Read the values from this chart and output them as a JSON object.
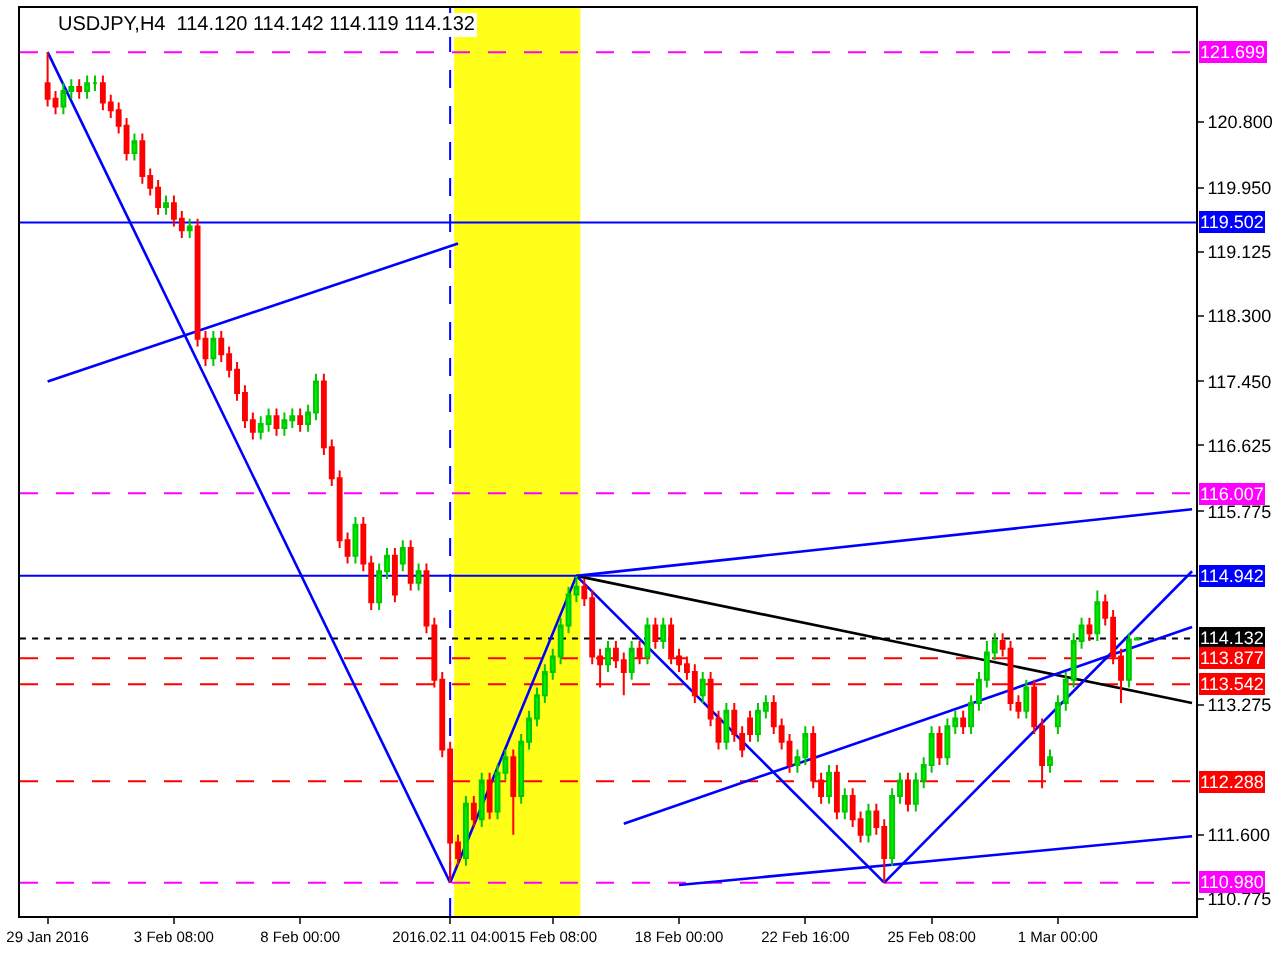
{
  "chart_data": {
    "type": "candlestick",
    "title": "USDJPY,H4  114.120 114.142 114.119 114.132",
    "categories": [
      "29 Jan 2016",
      null,
      null,
      null,
      null,
      null,
      null,
      null,
      null,
      null,
      null,
      null,
      null,
      null,
      null,
      null,
      "3 Feb 08:00",
      null,
      null,
      null,
      null,
      null,
      null,
      null,
      null,
      null,
      null,
      null,
      null,
      null,
      null,
      null,
      "8 Feb 00:00",
      null,
      null,
      null,
      null,
      null,
      null,
      null,
      null,
      null,
      null,
      null,
      null,
      null,
      null,
      null,
      null,
      null,
      null,
      "2016.02.11 04:00",
      null,
      null,
      null,
      null,
      null,
      null,
      null,
      null,
      null,
      null,
      null,
      null,
      "15 Feb 08:00",
      null,
      null,
      null,
      null,
      null,
      null,
      null,
      null,
      null,
      null,
      null,
      null,
      null,
      null,
      null,
      "18 Feb 00:00",
      null,
      null,
      null,
      null,
      null,
      null,
      null,
      null,
      null,
      null,
      null,
      null,
      null,
      null,
      null,
      "22 Feb 16:00",
      null,
      null,
      null,
      null,
      null,
      null,
      null,
      null,
      null,
      null,
      null,
      null,
      null,
      null,
      null,
      "25 Feb 08:00",
      null,
      null,
      null,
      null,
      null,
      null,
      null,
      null,
      null,
      null,
      null,
      null,
      null,
      null,
      null,
      "1 Mar 00:00",
      null,
      null,
      null,
      null,
      null,
      null,
      null,
      null,
      null,
      null,
      null,
      null,
      null,
      null,
      null,
      null,
      null
    ],
    "ylim": [
      110.55,
      122.27
    ],
    "yticks": [
      {
        "value": 120.8,
        "label": "120.800"
      },
      {
        "value": 119.95,
        "label": "119.950"
      },
      119.125,
      {
        "value": 118.3,
        "label": "118.300"
      },
      {
        "value": 117.45,
        "label": "117.450"
      },
      116.625,
      115.775,
      113.275,
      {
        "value": 111.6,
        "label": "111.600"
      },
      110.775
    ],
    "ohlc": [
      [
        121.3,
        121.7,
        121.0,
        121.1
      ],
      [
        121.1,
        121.2,
        120.9,
        121.0
      ],
      [
        121.0,
        121.3,
        120.9,
        121.2
      ],
      [
        121.2,
        121.35,
        121.1,
        121.25
      ],
      [
        121.25,
        121.35,
        121.1,
        121.2
      ],
      [
        121.2,
        121.4,
        121.1,
        121.3
      ],
      [
        121.3,
        121.4,
        121.2,
        121.3
      ],
      [
        121.3,
        121.4,
        120.95,
        121.05
      ],
      [
        121.05,
        121.15,
        120.85,
        120.95
      ],
      [
        120.95,
        121.05,
        120.65,
        120.75
      ],
      [
        120.75,
        120.85,
        120.3,
        120.4
      ],
      [
        120.4,
        120.65,
        120.3,
        120.55
      ],
      [
        120.55,
        120.65,
        120.0,
        120.1
      ],
      [
        120.1,
        120.2,
        119.85,
        119.95
      ],
      [
        119.95,
        120.05,
        119.6,
        119.7
      ],
      [
        119.7,
        119.85,
        119.6,
        119.75
      ],
      [
        119.75,
        119.85,
        119.45,
        119.55
      ],
      [
        119.55,
        119.65,
        119.3,
        119.4
      ],
      [
        119.4,
        119.55,
        119.3,
        119.45
      ],
      [
        119.45,
        119.55,
        117.9,
        118.0
      ],
      [
        118.0,
        118.1,
        117.65,
        117.75
      ],
      [
        117.75,
        118.1,
        117.65,
        118.0
      ],
      [
        118.0,
        118.1,
        117.7,
        117.8
      ],
      [
        117.8,
        117.9,
        117.5,
        117.6
      ],
      [
        117.6,
        117.7,
        117.2,
        117.3
      ],
      [
        117.3,
        117.4,
        116.85,
        116.95
      ],
      [
        116.95,
        117.05,
        116.7,
        116.8
      ],
      [
        116.8,
        117.0,
        116.7,
        116.9
      ],
      [
        116.9,
        117.1,
        116.8,
        117.0
      ],
      [
        117.0,
        117.1,
        116.75,
        116.85
      ],
      [
        116.85,
        117.05,
        116.75,
        116.95
      ],
      [
        116.95,
        117.1,
        116.85,
        117.0
      ],
      [
        117.0,
        117.1,
        116.8,
        116.9
      ],
      [
        116.9,
        117.15,
        116.8,
        117.05
      ],
      [
        117.05,
        117.55,
        116.95,
        117.45
      ],
      [
        117.45,
        117.55,
        116.5,
        116.6
      ],
      [
        116.6,
        116.7,
        116.1,
        116.2
      ],
      [
        116.2,
        116.3,
        115.3,
        115.4
      ],
      [
        115.4,
        115.5,
        115.1,
        115.2
      ],
      [
        115.2,
        115.7,
        115.1,
        115.6
      ],
      [
        115.6,
        115.7,
        115.0,
        115.1
      ],
      [
        115.1,
        115.2,
        114.5,
        114.6
      ],
      [
        114.6,
        115.1,
        114.5,
        115.0
      ],
      [
        115.0,
        115.3,
        114.9,
        115.2
      ],
      [
        115.2,
        115.3,
        114.6,
        114.7
      ],
      [
        115.1,
        115.4,
        115.0,
        115.3
      ],
      [
        115.3,
        115.4,
        114.75,
        114.85
      ],
      [
        114.85,
        115.1,
        114.75,
        115.0
      ],
      [
        115.0,
        115.1,
        114.2,
        114.3
      ],
      [
        114.3,
        114.4,
        113.5,
        113.6
      ],
      [
        113.6,
        113.7,
        112.6,
        112.7
      ],
      [
        112.7,
        112.8,
        110.98,
        111.5
      ],
      [
        111.5,
        111.6,
        111.2,
        111.3
      ],
      [
        111.3,
        112.1,
        111.2,
        112.0
      ],
      [
        112.0,
        112.1,
        111.7,
        111.8
      ],
      [
        111.8,
        112.4,
        111.7,
        112.3
      ],
      [
        112.3,
        112.4,
        111.8,
        111.9
      ],
      [
        111.9,
        112.5,
        111.8,
        112.4
      ],
      [
        112.4,
        112.7,
        112.3,
        112.6
      ],
      [
        112.6,
        112.7,
        111.6,
        112.1
      ],
      [
        112.1,
        112.9,
        112.0,
        112.8
      ],
      [
        112.8,
        113.2,
        112.7,
        113.1
      ],
      [
        113.1,
        113.5,
        113.0,
        113.4
      ],
      [
        113.4,
        113.8,
        113.3,
        113.7
      ],
      [
        113.7,
        114.0,
        113.6,
        113.9
      ],
      [
        113.9,
        114.4,
        113.8,
        114.3
      ],
      [
        114.3,
        114.8,
        114.2,
        114.7
      ],
      [
        114.7,
        114.94,
        114.6,
        114.8
      ],
      [
        114.8,
        114.9,
        114.55,
        114.65
      ],
      [
        114.65,
        114.75,
        113.8,
        113.9
      ],
      [
        113.9,
        114.0,
        113.5,
        113.8
      ],
      [
        113.8,
        114.1,
        113.7,
        114.0
      ],
      [
        114.0,
        114.1,
        113.75,
        113.85
      ],
      [
        113.85,
        113.95,
        113.4,
        113.7
      ],
      [
        113.7,
        114.1,
        113.6,
        114.0
      ],
      [
        114.0,
        114.1,
        113.8,
        113.9
      ],
      [
        113.9,
        114.4,
        113.8,
        114.3
      ],
      [
        114.3,
        114.4,
        114.0,
        114.1
      ],
      [
        114.1,
        114.4,
        114.0,
        114.3
      ],
      [
        114.3,
        114.4,
        113.8,
        113.9
      ],
      [
        113.9,
        114.0,
        113.7,
        113.8
      ],
      [
        113.8,
        113.9,
        113.6,
        113.7
      ],
      [
        113.7,
        113.8,
        113.3,
        113.4
      ],
      [
        113.4,
        113.7,
        113.3,
        113.6
      ],
      [
        113.6,
        113.7,
        113.0,
        113.1
      ],
      [
        113.1,
        113.2,
        112.7,
        112.8
      ],
      [
        112.8,
        113.3,
        112.7,
        113.2
      ],
      [
        113.2,
        113.3,
        112.8,
        112.9
      ],
      [
        112.9,
        113.0,
        112.6,
        112.7
      ],
      [
        113.1,
        113.2,
        112.8,
        112.9
      ],
      [
        112.9,
        113.3,
        112.8,
        113.2
      ],
      [
        113.2,
        113.4,
        113.1,
        113.3
      ],
      [
        113.3,
        113.4,
        112.9,
        113.0
      ],
      [
        113.0,
        113.1,
        112.7,
        112.8
      ],
      [
        112.8,
        112.9,
        112.4,
        112.5
      ],
      [
        112.5,
        112.7,
        112.4,
        112.6
      ],
      [
        112.6,
        113.0,
        112.5,
        112.9
      ],
      [
        112.9,
        113.0,
        112.2,
        112.3
      ],
      [
        112.3,
        112.4,
        112.0,
        112.1
      ],
      [
        112.1,
        112.5,
        112.0,
        112.4
      ],
      [
        112.4,
        112.5,
        111.8,
        111.9
      ],
      [
        111.9,
        112.2,
        111.8,
        112.1
      ],
      [
        112.1,
        112.2,
        111.7,
        111.8
      ],
      [
        111.8,
        111.9,
        111.5,
        111.6
      ],
      [
        111.6,
        112.0,
        111.5,
        111.9
      ],
      [
        111.9,
        112.0,
        111.6,
        111.7
      ],
      [
        111.7,
        111.8,
        110.98,
        111.3
      ],
      [
        111.3,
        112.2,
        111.2,
        112.1
      ],
      [
        112.1,
        112.4,
        112.0,
        112.3
      ],
      [
        112.3,
        112.4,
        111.9,
        112.0
      ],
      [
        112.0,
        112.4,
        111.9,
        112.3
      ],
      [
        112.3,
        112.6,
        112.2,
        112.5
      ],
      [
        112.5,
        113.0,
        112.4,
        112.9
      ],
      [
        112.9,
        113.0,
        112.5,
        112.6
      ],
      [
        112.6,
        113.1,
        112.5,
        113.0
      ],
      [
        113.0,
        113.2,
        112.9,
        113.1
      ],
      [
        113.1,
        113.2,
        112.9,
        113.0
      ],
      [
        113.0,
        113.4,
        112.9,
        113.3
      ],
      [
        113.3,
        113.7,
        113.2,
        113.6
      ],
      [
        113.6,
        114.1,
        113.5,
        113.95
      ],
      [
        113.95,
        114.2,
        113.85,
        114.1
      ],
      [
        114.1,
        114.2,
        113.9,
        114.0
      ],
      [
        114.0,
        114.1,
        113.2,
        113.3
      ],
      [
        113.3,
        113.4,
        113.1,
        113.2
      ],
      [
        113.2,
        113.6,
        113.1,
        113.5
      ],
      [
        113.5,
        113.6,
        112.9,
        113.0
      ],
      [
        113.0,
        113.1,
        112.2,
        112.5
      ],
      [
        112.5,
        112.7,
        112.4,
        112.6
      ],
      [
        113.0,
        113.4,
        112.9,
        113.3
      ],
      [
        113.3,
        113.7,
        113.2,
        113.6
      ],
      [
        113.6,
        114.2,
        113.5,
        114.1
      ],
      [
        114.1,
        114.4,
        114.0,
        114.3
      ],
      [
        114.3,
        114.4,
        114.1,
        114.2
      ],
      [
        114.2,
        114.75,
        114.1,
        114.6
      ],
      [
        114.6,
        114.7,
        114.3,
        114.4
      ],
      [
        114.4,
        114.5,
        113.8,
        113.9
      ],
      [
        113.9,
        114.0,
        113.3,
        113.6
      ],
      [
        113.6,
        114.2,
        113.5,
        114.12
      ],
      [
        114.12,
        114.142,
        114.119,
        114.132
      ],
      null,
      null,
      null,
      null,
      null,
      null,
      null
    ],
    "series": [
      {
        "type": "line",
        "color": "#0000ff",
        "values": [
          121.7,
          null,
          null,
          null,
          null,
          null,
          null,
          null,
          null,
          null,
          null,
          null,
          null,
          null,
          null,
          null,
          null,
          null,
          null,
          null,
          null,
          null,
          null,
          null,
          null,
          null,
          null,
          null,
          null,
          null,
          null,
          null,
          null,
          null,
          null,
          null,
          null,
          null,
          null,
          null,
          null,
          null,
          null,
          null,
          null,
          null,
          null,
          null,
          null,
          null,
          null,
          110.98,
          null,
          null,
          null,
          null,
          null,
          null,
          null,
          null,
          null,
          null,
          null,
          null,
          null,
          null,
          null,
          null,
          null,
          null,
          null,
          null,
          null,
          null,
          null,
          null,
          null,
          null,
          null,
          null,
          null,
          null,
          null,
          null,
          null,
          null,
          null,
          null,
          null,
          null,
          null,
          null,
          null,
          null,
          null,
          null,
          null,
          null,
          null,
          null,
          null,
          null,
          null,
          null,
          null,
          null,
          null,
          null,
          null,
          null,
          null,
          null,
          null,
          null,
          null,
          null,
          null,
          null,
          null,
          null,
          null,
          null,
          null,
          null,
          null,
          null,
          null,
          null,
          null,
          null,
          null,
          null,
          null,
          null,
          null,
          null,
          null,
          null,
          null,
          null,
          null,
          null,
          null,
          null,
          null,
          null
        ]
      },
      {
        "type": "line",
        "color": "#0000ff",
        "values": [
          117.45,
          null,
          null,
          null,
          null,
          null,
          null,
          null,
          null,
          null,
          null,
          null,
          null,
          null,
          null,
          null,
          null,
          null,
          null,
          null,
          null,
          null,
          null,
          null,
          null,
          null,
          null,
          null,
          null,
          null,
          null,
          null,
          null,
          null,
          null,
          null,
          null,
          null,
          null,
          null,
          null,
          null,
          null,
          null,
          null,
          null,
          null,
          null,
          null,
          null,
          null,
          null,
          119.23,
          null,
          null,
          null,
          null,
          null,
          null,
          null,
          null,
          null,
          null,
          null,
          null,
          null,
          null,
          null,
          null,
          null,
          null,
          null,
          null,
          null,
          null,
          null,
          null,
          null,
          null,
          null,
          null,
          null,
          null,
          null,
          null,
          null,
          null,
          null,
          null,
          null,
          null,
          null,
          null,
          null,
          null,
          null,
          null,
          null,
          null,
          null,
          null,
          null,
          null,
          null,
          null,
          null,
          null,
          null,
          null,
          null,
          null,
          null,
          null,
          null,
          null,
          null,
          null,
          null,
          null,
          null,
          null,
          null,
          null,
          null,
          null,
          null,
          null,
          null,
          null,
          null,
          null,
          null,
          null,
          null,
          null,
          null,
          null,
          null,
          null,
          null,
          null,
          null,
          null,
          null,
          null,
          null
        ]
      },
      {
        "type": "line",
        "color": "#0000ff",
        "values": [
          null,
          null,
          null,
          null,
          null,
          null,
          null,
          null,
          null,
          null,
          null,
          null,
          null,
          null,
          null,
          null,
          null,
          null,
          null,
          null,
          null,
          null,
          null,
          null,
          null,
          null,
          null,
          null,
          null,
          null,
          null,
          null,
          null,
          null,
          null,
          null,
          null,
          null,
          null,
          null,
          null,
          null,
          null,
          null,
          null,
          null,
          null,
          null,
          null,
          null,
          null,
          110.98,
          null,
          null,
          null,
          null,
          null,
          null,
          null,
          null,
          null,
          null,
          null,
          null,
          null,
          null,
          null,
          114.94,
          null,
          null,
          null,
          null,
          null,
          null,
          null,
          null,
          null,
          null,
          null,
          null,
          null,
          null,
          null,
          null,
          null,
          null,
          null,
          null,
          null,
          null,
          null,
          null,
          null,
          null,
          null,
          null,
          null,
          null,
          null,
          null,
          null,
          null,
          null,
          null,
          null,
          null,
          null,
          null,
          null,
          null,
          null,
          null,
          null,
          null,
          null,
          null,
          null,
          null,
          null,
          null,
          null,
          null,
          null,
          null,
          null,
          null,
          null,
          null,
          null,
          null,
          null,
          null,
          null,
          null,
          null,
          null,
          null,
          null,
          null,
          null,
          null,
          null,
          null,
          null,
          null,
          null
        ]
      },
      {
        "type": "line",
        "color": "#0000ff",
        "values": [
          null,
          null,
          null,
          null,
          null,
          null,
          null,
          null,
          null,
          null,
          null,
          null,
          null,
          null,
          null,
          null,
          null,
          null,
          null,
          null,
          null,
          null,
          null,
          null,
          null,
          null,
          null,
          null,
          null,
          null,
          null,
          null,
          null,
          null,
          null,
          null,
          null,
          null,
          null,
          null,
          null,
          null,
          null,
          null,
          null,
          null,
          null,
          null,
          null,
          null,
          null,
          null,
          null,
          null,
          null,
          null,
          null,
          null,
          null,
          null,
          null,
          null,
          null,
          null,
          null,
          null,
          null,
          114.94,
          null,
          null,
          null,
          null,
          null,
          null,
          null,
          null,
          null,
          null,
          null,
          null,
          null,
          null,
          null,
          null,
          null,
          null,
          null,
          null,
          null,
          null,
          null,
          null,
          null,
          null,
          null,
          null,
          null,
          null,
          null,
          null,
          null,
          null,
          null,
          null,
          null,
          null,
          110.98,
          null,
          null,
          null,
          null,
          null,
          null,
          null,
          null,
          null,
          null,
          null,
          null,
          null,
          null,
          null,
          null,
          null,
          null,
          null,
          null,
          null,
          null,
          null,
          null,
          null,
          null,
          null,
          null,
          null,
          null,
          null,
          null,
          null,
          null,
          null,
          null,
          null,
          null,
          null
        ]
      },
      {
        "type": "line",
        "color": "#000000",
        "values": [
          null,
          null,
          null,
          null,
          null,
          null,
          null,
          null,
          null,
          null,
          null,
          null,
          null,
          null,
          null,
          null,
          null,
          null,
          null,
          null,
          null,
          null,
          null,
          null,
          null,
          null,
          null,
          null,
          null,
          null,
          null,
          null,
          null,
          null,
          null,
          null,
          null,
          null,
          null,
          null,
          null,
          null,
          null,
          null,
          null,
          null,
          null,
          null,
          null,
          null,
          null,
          null,
          null,
          null,
          null,
          null,
          null,
          null,
          null,
          null,
          null,
          null,
          null,
          null,
          null,
          null,
          null,
          114.94,
          null,
          null,
          null,
          null,
          null,
          null,
          null,
          null,
          null,
          null,
          null,
          null,
          null,
          null,
          null,
          null,
          null,
          null,
          null,
          null,
          null,
          null,
          null,
          null,
          null,
          null,
          null,
          null,
          null,
          null,
          null,
          null,
          null,
          null,
          null,
          null,
          null,
          null,
          null,
          null,
          null,
          null,
          null,
          null,
          null,
          null,
          null,
          null,
          null,
          null,
          null,
          null,
          null,
          null,
          null,
          null,
          null,
          null,
          null,
          null,
          null,
          null,
          null,
          null,
          null,
          null,
          null,
          null,
          null,
          null,
          null,
          null,
          null,
          null,
          null,
          null,
          null,
          113.3
        ]
      },
      {
        "type": "line",
        "color": "#0000ff",
        "values": [
          null,
          null,
          null,
          null,
          null,
          null,
          null,
          null,
          null,
          null,
          null,
          null,
          null,
          null,
          null,
          null,
          null,
          null,
          null,
          null,
          null,
          null,
          null,
          null,
          null,
          null,
          null,
          null,
          null,
          null,
          null,
          null,
          null,
          null,
          null,
          null,
          null,
          null,
          null,
          null,
          null,
          null,
          null,
          null,
          null,
          null,
          null,
          null,
          null,
          null,
          null,
          null,
          null,
          null,
          null,
          null,
          null,
          null,
          null,
          null,
          null,
          null,
          null,
          null,
          null,
          null,
          null,
          114.94,
          null,
          null,
          null,
          null,
          null,
          null,
          null,
          null,
          null,
          null,
          null,
          null,
          null,
          null,
          null,
          null,
          null,
          null,
          null,
          null,
          null,
          null,
          null,
          null,
          null,
          null,
          null,
          null,
          null,
          null,
          null,
          null,
          null,
          null,
          null,
          null,
          null,
          null,
          null,
          null,
          null,
          null,
          null,
          null,
          null,
          null,
          null,
          null,
          null,
          null,
          null,
          null,
          null,
          null,
          null,
          null,
          null,
          null,
          null,
          null,
          null,
          null,
          null,
          null,
          null,
          null,
          null,
          null,
          null,
          null,
          null,
          null,
          null,
          null,
          null,
          null,
          null,
          115.8
        ]
      },
      {
        "type": "line",
        "color": "#0000ff",
        "values": [
          null,
          null,
          null,
          null,
          null,
          null,
          null,
          null,
          null,
          null,
          null,
          null,
          null,
          null,
          null,
          null,
          null,
          null,
          null,
          null,
          null,
          null,
          null,
          null,
          null,
          null,
          null,
          null,
          null,
          null,
          null,
          null,
          null,
          null,
          null,
          null,
          null,
          null,
          null,
          null,
          null,
          null,
          null,
          null,
          null,
          null,
          null,
          null,
          null,
          null,
          null,
          null,
          null,
          null,
          null,
          null,
          null,
          null,
          null,
          null,
          null,
          null,
          null,
          null,
          null,
          null,
          null,
          null,
          null,
          null,
          null,
          null,
          null,
          null,
          null,
          null,
          null,
          null,
          null,
          null,
          null,
          null,
          null,
          null,
          null,
          null,
          null,
          null,
          null,
          null,
          null,
          null,
          null,
          null,
          null,
          null,
          null,
          null,
          null,
          null,
          null,
          null,
          null,
          null,
          null,
          null,
          110.98,
          null,
          null,
          null,
          null,
          null,
          null,
          null,
          null,
          null,
          null,
          null,
          null,
          null,
          null,
          null,
          null,
          null,
          null,
          null,
          null,
          null,
          null,
          null,
          null,
          null,
          null,
          null,
          null,
          null,
          null,
          null,
          null,
          null,
          null,
          null,
          null,
          null,
          null,
          115.0
        ]
      },
      {
        "type": "line",
        "color": "#0000ff",
        "values": [
          null,
          null,
          null,
          null,
          null,
          null,
          null,
          null,
          null,
          null,
          null,
          null,
          null,
          null,
          null,
          null,
          null,
          null,
          null,
          null,
          null,
          null,
          null,
          null,
          null,
          null,
          null,
          null,
          null,
          null,
          null,
          null,
          null,
          null,
          null,
          null,
          null,
          null,
          null,
          null,
          null,
          null,
          null,
          null,
          null,
          null,
          null,
          null,
          null,
          null,
          null,
          null,
          null,
          null,
          null,
          null,
          null,
          null,
          null,
          null,
          null,
          null,
          null,
          null,
          null,
          null,
          null,
          null,
          null,
          null,
          null,
          null,
          null,
          null,
          null,
          null,
          null,
          null,
          null,
          null,
          110.95,
          null,
          null,
          null,
          null,
          null,
          null,
          null,
          null,
          null,
          null,
          null,
          null,
          null,
          null,
          null,
          null,
          null,
          null,
          null,
          null,
          null,
          null,
          null,
          null,
          null,
          null,
          null,
          null,
          null,
          null,
          null,
          null,
          null,
          null,
          null,
          null,
          null,
          null,
          null,
          null,
          null,
          null,
          null,
          null,
          null,
          null,
          null,
          null,
          null,
          null,
          null,
          null,
          null,
          null,
          null,
          null,
          null,
          null,
          null,
          null,
          null,
          null,
          null,
          null,
          111.58
        ]
      },
      {
        "type": "line",
        "color": "#0000ff",
        "values": [
          null,
          null,
          null,
          null,
          null,
          null,
          null,
          null,
          null,
          null,
          null,
          null,
          null,
          null,
          null,
          null,
          null,
          null,
          null,
          null,
          null,
          null,
          null,
          null,
          null,
          null,
          null,
          null,
          null,
          null,
          null,
          null,
          null,
          null,
          null,
          null,
          null,
          null,
          null,
          null,
          null,
          null,
          null,
          null,
          null,
          null,
          null,
          null,
          null,
          null,
          null,
          null,
          null,
          null,
          null,
          null,
          null,
          null,
          null,
          null,
          null,
          null,
          null,
          null,
          null,
          null,
          null,
          null,
          null,
          null,
          null,
          null,
          null,
          111.74,
          null,
          null,
          null,
          null,
          null,
          null,
          null,
          null,
          null,
          null,
          null,
          null,
          null,
          null,
          null,
          null,
          null,
          null,
          null,
          null,
          null,
          null,
          null,
          null,
          null,
          null,
          null,
          null,
          null,
          null,
          null,
          null,
          null,
          null,
          null,
          null,
          null,
          null,
          null,
          null,
          null,
          null,
          null,
          null,
          null,
          null,
          null,
          null,
          null,
          null,
          null,
          null,
          null,
          null,
          null,
          null,
          null,
          null,
          null,
          null,
          null,
          null,
          null,
          null,
          null,
          null,
          null,
          null,
          null,
          null,
          null,
          114.28
        ]
      }
    ],
    "ref_lines": [
      {
        "axis": "y",
        "value": 121.699,
        "label": "121.699",
        "color": "#ff00ff",
        "line_style": "dashed"
      },
      {
        "axis": "y",
        "value": 119.502,
        "label": "119.502",
        "color": "#0000ff",
        "line_style": "solid"
      },
      {
        "axis": "y",
        "value": 116.007,
        "label": "116.007",
        "color": "#ff00ff",
        "line_style": "dashed"
      },
      {
        "axis": "y",
        "value": 114.942,
        "label": "114.942",
        "color": "#0000ff",
        "line_style": "solid"
      },
      {
        "axis": "y",
        "value": 114.132,
        "label": "114.132",
        "color": "#000000",
        "line_style": "dotted"
      },
      {
        "axis": "y",
        "value": 113.877,
        "label": "113.877",
        "color": "#ff0000",
        "line_style": "dashed"
      },
      {
        "axis": "y",
        "value": 113.542,
        "label": "113.542",
        "color": "#ff0000",
        "line_style": "dashed"
      },
      {
        "axis": "y",
        "value": 112.288,
        "label": "112.288",
        "color": "#ff0000",
        "line_style": "dashed"
      },
      {
        "axis": "y",
        "value": 110.98,
        "label": "110.980",
        "color": "#ff00ff",
        "line_style": "dashed"
      },
      {
        "axis": "x",
        "value": "2016.02.11 04:00",
        "color": "#0000ff",
        "line_style": "dashed"
      }
    ]
  }
}
